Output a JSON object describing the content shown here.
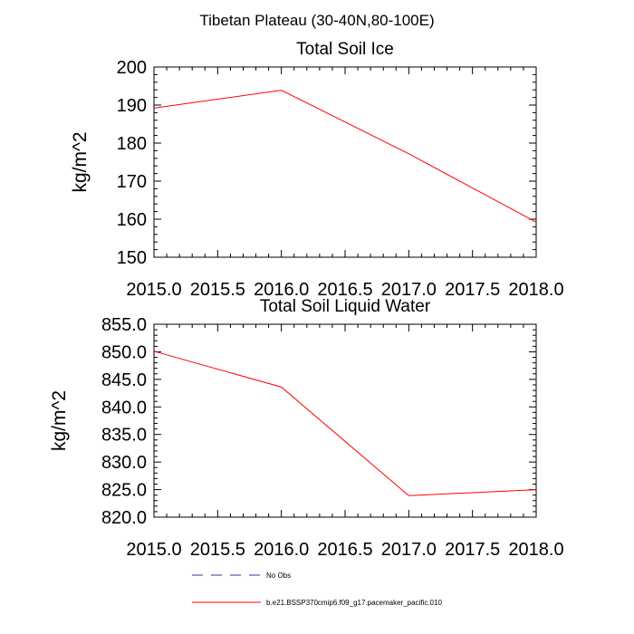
{
  "figure": {
    "title": "Tibetan Plateau (30-40N,80-100E)"
  },
  "chart_data": [
    {
      "type": "line",
      "title": "Total Soil Ice",
      "xlabel": "",
      "ylabel": "kg/m^2",
      "xlim": [
        2015.0,
        2018.0
      ],
      "ylim": [
        150,
        200
      ],
      "xticks": [
        "2015.0",
        "2015.5",
        "2016.0",
        "2016.5",
        "2017.0",
        "2017.5",
        "2018.0"
      ],
      "yticks": [
        "150",
        "160",
        "170",
        "180",
        "190",
        "200"
      ],
      "series": [
        {
          "name": "b.e21.BSSP370cmip6.f09_g17.pacemaker_pacific.010",
          "color": "#ff0000",
          "x": [
            2015,
            2016,
            2017,
            2018
          ],
          "y": [
            189.2,
            193.9,
            177.2,
            159.2
          ]
        }
      ]
    },
    {
      "type": "line",
      "title": "Total Soil Liquid Water",
      "xlabel": "",
      "ylabel": "kg/m^2",
      "xlim": [
        2015.0,
        2018.0
      ],
      "ylim": [
        820,
        855
      ],
      "xticks": [
        "2015.0",
        "2015.5",
        "2016.0",
        "2016.5",
        "2017.0",
        "2017.5",
        "2018.0"
      ],
      "yticks": [
        "820.0",
        "825.0",
        "830.0",
        "835.0",
        "840.0",
        "845.0",
        "850.0",
        "855.0"
      ],
      "series": [
        {
          "name": "b.e21.BSSP370cmip6.f09_g17.pacemaker_pacific.010",
          "color": "#ff0000",
          "x": [
            2015,
            2016,
            2017,
            2018
          ],
          "y": [
            850.1,
            843.6,
            823.9,
            825.0
          ]
        }
      ]
    }
  ],
  "legend": {
    "entries": [
      {
        "label": "No Obs",
        "color": "#3333aa",
        "style": "dashed"
      },
      {
        "label": "b.e21.BSSP370cmip6.f09_g17.pacemaker_pacific.010",
        "color": "#ff0000",
        "style": "solid"
      }
    ]
  }
}
